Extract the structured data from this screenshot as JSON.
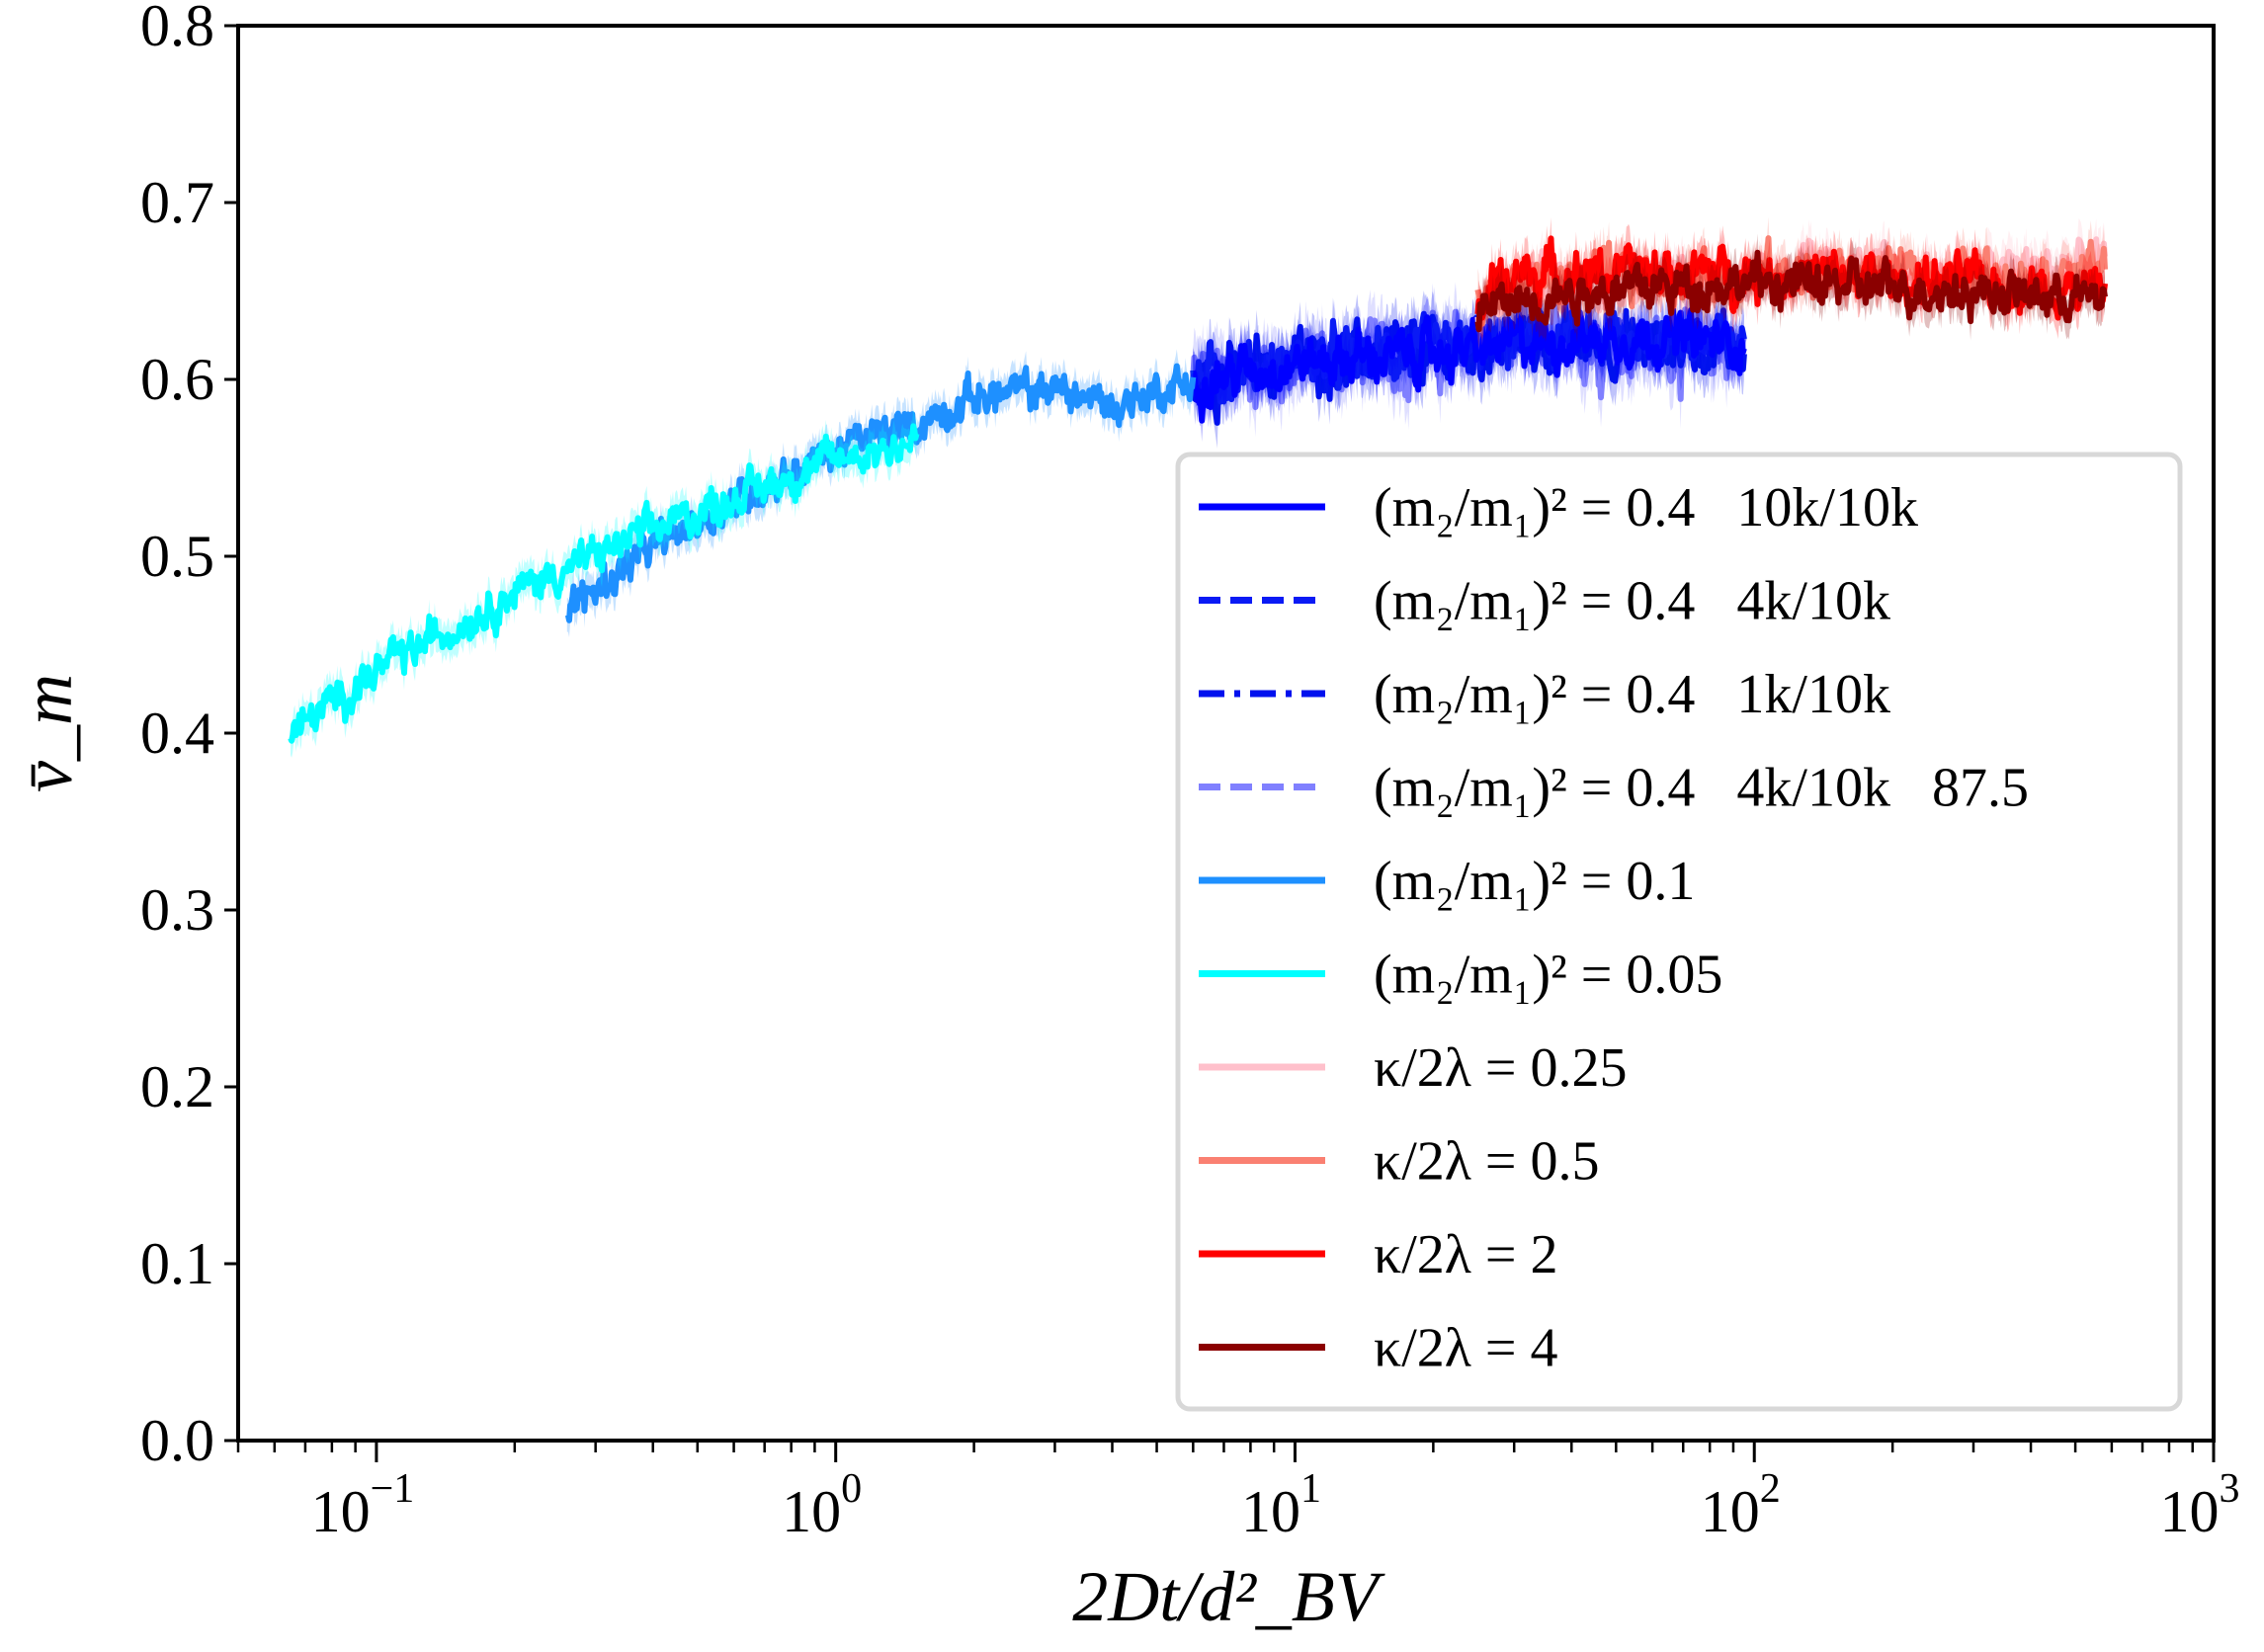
{
  "chart_data": {
    "type": "line",
    "title": "",
    "xlabel": "2Dt/d²_BV",
    "xlabel_main": "2Dt/d",
    "xlabel_sup": "2",
    "xlabel_sub": "BV",
    "ylabel": "v̄_m",
    "ylabel_main": "v̄",
    "ylabel_sub": "m",
    "xscale": "log",
    "xlim": [
      0.05,
      1000
    ],
    "ylim": [
      0.0,
      0.8
    ],
    "grid": false,
    "legend_position": "lower-right",
    "yticks": [
      "0.0",
      "0.1",
      "0.2",
      "0.3",
      "0.4",
      "0.5",
      "0.6",
      "0.7",
      "0.8"
    ],
    "yticks_values": [
      0,
      0.1,
      0.2,
      0.3,
      0.4,
      0.5,
      0.6,
      0.7,
      0.8
    ],
    "xticks": [
      {
        "base": "10",
        "exp": "−1",
        "value": 0.1
      },
      {
        "base": "10",
        "exp": "0",
        "value": 1
      },
      {
        "base": "10",
        "exp": "1",
        "value": 10
      },
      {
        "base": "10",
        "exp": "2",
        "value": 100
      },
      {
        "base": "10",
        "exp": "3",
        "value": 1000
      }
    ],
    "series": [
      {
        "name": "(m₂/m₁)² = 0.4   4k/10k   87.5",
        "color": "#8080ff",
        "dash": "dashed",
        "noise": 0.014,
        "points": [
          [
            6,
            0.6
          ],
          [
            10,
            0.61
          ],
          [
            20,
            0.615
          ],
          [
            30,
            0.62
          ],
          [
            60,
            0.62
          ],
          [
            95,
            0.615
          ]
        ]
      },
      {
        "name": "(m₂/m₁)² = 0.4   1k/10k",
        "color": "#0011ee",
        "dash": "dashdot",
        "noise": 0.012,
        "points": [
          [
            6,
            0.6
          ],
          [
            10,
            0.61
          ],
          [
            20,
            0.615
          ],
          [
            30,
            0.62
          ],
          [
            60,
            0.62
          ],
          [
            95,
            0.62
          ]
        ]
      },
      {
        "name": "(m₂/m₁)² = 0.4   4k/10k",
        "color": "#0a1af5",
        "dash": "dashed",
        "noise": 0.011,
        "points": [
          [
            6,
            0.6
          ],
          [
            10,
            0.61
          ],
          [
            20,
            0.615
          ],
          [
            30,
            0.622
          ],
          [
            60,
            0.625
          ],
          [
            95,
            0.62
          ]
        ]
      },
      {
        "name": "(m₂/m₁)² = 0.4   10k/10k",
        "color": "#0000ff",
        "dash": "solid",
        "noise": 0.01,
        "points": [
          [
            6,
            0.6
          ],
          [
            10,
            0.61
          ],
          [
            20,
            0.615
          ],
          [
            30,
            0.62
          ],
          [
            60,
            0.625
          ],
          [
            95,
            0.62
          ]
        ]
      },
      {
        "name": "(m₂/m₁)² = 0.1",
        "color": "#1e90ff",
        "dash": "solid",
        "noise": 0.008,
        "points": [
          [
            0.26,
            0.47
          ],
          [
            0.4,
            0.505
          ],
          [
            0.7,
            0.54
          ],
          [
            1,
            0.56
          ],
          [
            1.5,
            0.575
          ],
          [
            2,
            0.59
          ],
          [
            3,
            0.595
          ],
          [
            4,
            0.585
          ],
          [
            6,
            0.6
          ]
        ]
      },
      {
        "name": "(m₂/m₁)² = 0.05",
        "color": "#00ffff",
        "dash": "solid",
        "noise": 0.008,
        "points": [
          [
            0.065,
            0.4
          ],
          [
            0.1,
            0.435
          ],
          [
            0.2,
            0.48
          ],
          [
            0.4,
            0.515
          ],
          [
            0.7,
            0.54
          ],
          [
            1,
            0.555
          ],
          [
            1.5,
            0.565
          ]
        ]
      },
      {
        "name": "κ/2λ = 0.25",
        "color": "#ffc0cb",
        "dash": "solid",
        "noise": 0.01,
        "points": [
          [
            25,
            0.635
          ],
          [
            30,
            0.655
          ],
          [
            100,
            0.66
          ],
          [
            300,
            0.66
          ],
          [
            580,
            0.665
          ]
        ]
      },
      {
        "name": "κ/2λ = 0.5",
        "color": "#fa8072",
        "dash": "solid",
        "noise": 0.01,
        "points": [
          [
            25,
            0.64
          ],
          [
            30,
            0.655
          ],
          [
            100,
            0.66
          ],
          [
            300,
            0.66
          ],
          [
            580,
            0.66
          ]
        ]
      },
      {
        "name": "κ/2λ = 2",
        "color": "#ff0000",
        "dash": "solid",
        "noise": 0.01,
        "points": [
          [
            25,
            0.645
          ],
          [
            30,
            0.66
          ],
          [
            100,
            0.66
          ],
          [
            300,
            0.655
          ],
          [
            580,
            0.65
          ]
        ]
      },
      {
        "name": "κ/2λ = 4",
        "color": "#8b0000",
        "dash": "solid",
        "noise": 0.009,
        "points": [
          [
            25,
            0.64
          ],
          [
            40,
            0.65
          ],
          [
            100,
            0.655
          ],
          [
            300,
            0.65
          ],
          [
            580,
            0.645
          ]
        ]
      }
    ],
    "legend": [
      {
        "label": "(m₂/m₁)² = 0.4   10k/10k",
        "color": "#0000ff",
        "dash": "solid"
      },
      {
        "label": "(m₂/m₁)² = 0.4   4k/10k",
        "color": "#0a1af5",
        "dash": "dashed"
      },
      {
        "label": "(m₂/m₁)² = 0.4   1k/10k",
        "color": "#0011ee",
        "dash": "dashdot"
      },
      {
        "label": "(m₂/m₁)² = 0.4   4k/10k   87.5",
        "color": "#8080ff",
        "dash": "dashed"
      },
      {
        "label": "(m₂/m₁)² = 0.1",
        "color": "#1e90ff",
        "dash": "solid"
      },
      {
        "label": "(m₂/m₁)² = 0.05",
        "color": "#00ffff",
        "dash": "solid"
      },
      {
        "label": "κ/2λ = 0.25",
        "color": "#ffc0cb",
        "dash": "solid"
      },
      {
        "label": "κ/2λ = 0.5",
        "color": "#fa8072",
        "dash": "solid"
      },
      {
        "label": "κ/2λ = 2",
        "color": "#ff0000",
        "dash": "solid"
      },
      {
        "label": "κ/2λ = 4",
        "color": "#8b0000",
        "dash": "solid"
      }
    ]
  }
}
